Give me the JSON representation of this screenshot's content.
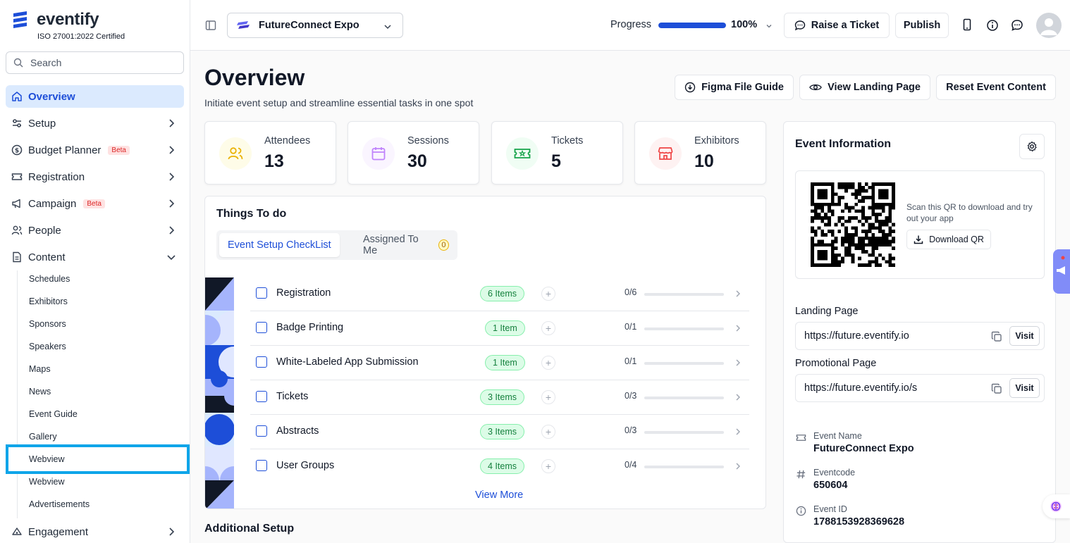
{
  "brand": {
    "name": "eventify",
    "certification": "ISO 27001:2022 Certified",
    "accent": "#1d4ed8"
  },
  "search": {
    "placeholder": "Search"
  },
  "sidebar": {
    "items": [
      {
        "label": "Overview",
        "icon": "home-icon",
        "active": true
      },
      {
        "label": "Setup",
        "icon": "sliders-icon"
      },
      {
        "label": "Budget Planner",
        "icon": "dollar-icon",
        "badge": "Beta"
      },
      {
        "label": "Registration",
        "icon": "ticket-icon"
      },
      {
        "label": "Campaign",
        "icon": "megaphone-icon",
        "badge": "Beta"
      },
      {
        "label": "People",
        "icon": "users-icon"
      },
      {
        "label": "Content",
        "icon": "document-icon",
        "expanded": true
      },
      {
        "label": "Engagement",
        "icon": "engagement-icon"
      }
    ],
    "content_subitems": [
      "Schedules",
      "Exhibitors",
      "Sponsors",
      "Speakers",
      "Maps",
      "News",
      "Event Guide",
      "Gallery",
      "Webview",
      "Webview",
      "Advertisements"
    ]
  },
  "topbar": {
    "event_name": "FutureConnect Expo",
    "progress_label": "Progress",
    "progress_value": "100%",
    "progress_fraction": 1.0,
    "raise_ticket": "Raise a Ticket",
    "publish": "Publish"
  },
  "main": {
    "title": "Overview",
    "subtitle": "Initiate event setup and streamline essential tasks in one spot",
    "buttons": {
      "figma_guide": "Figma File Guide",
      "view_landing": "View Landing Page",
      "reset": "Reset Event Content"
    },
    "stats": [
      {
        "label": "Attendees",
        "value": "13",
        "icon": "users-icon",
        "color": "#eab308"
      },
      {
        "label": "Sessions",
        "value": "30",
        "icon": "calendar-icon",
        "color": "#c084fc"
      },
      {
        "label": "Tickets",
        "value": "5",
        "icon": "ticket-icon",
        "color": "#16a34a"
      },
      {
        "label": "Exhibitors",
        "value": "10",
        "icon": "store-icon",
        "color": "#ef4444"
      }
    ],
    "todo": {
      "title": "Things To do",
      "tab_checklist": "Event Setup CheckList",
      "tab_assigned": "Assigned To Me",
      "assigned_count": "0",
      "tasks": [
        {
          "name": "Registration",
          "badge": "6 Items",
          "progress": "0/6"
        },
        {
          "name": "Badge Printing",
          "badge": "1 Item",
          "progress": "0/1"
        },
        {
          "name": "White-Labeled App Submission",
          "badge": "1 Item",
          "progress": "0/1"
        },
        {
          "name": "Tickets",
          "badge": "3 Items",
          "progress": "0/3"
        },
        {
          "name": "Abstracts",
          "badge": "3 Items",
          "progress": "0/3"
        },
        {
          "name": "User Groups",
          "badge": "4 Items",
          "progress": "0/4"
        }
      ],
      "view_more": "View More"
    },
    "additional_setup": "Additional Setup"
  },
  "event_info": {
    "title": "Event Information",
    "qr_text": "Scan this QR to download and try out your app",
    "download_qr": "Download QR",
    "landing_label": "Landing Page",
    "landing_url": "https://future.eventify.io",
    "promo_label": "Promotional Page",
    "promo_url": "https://future.eventify.io/s",
    "visit": "Visit",
    "event_name_label": "Event Name",
    "event_name": "FutureConnect Expo",
    "eventcode_label": "Eventcode",
    "eventcode": "650604",
    "event_id_label": "Event ID",
    "event_id": "1788153928369628"
  }
}
